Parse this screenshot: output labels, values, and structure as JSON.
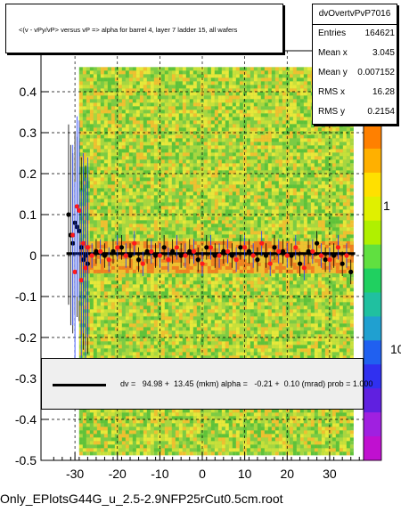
{
  "chart_data": {
    "type": "scatter",
    "title": "<(v - vPy/vP> versus   vP => alpha for barrel 4, layer 7 ladder 15, all wafers",
    "footer": "Only_EPlotsG44G_u_2.5-2.9NFP25rCut0.5cm.root",
    "xlim": [
      -38,
      38
    ],
    "ylim": [
      -0.5,
      0.5
    ],
    "x_ticks": [
      -30,
      -20,
      -10,
      0,
      10,
      20,
      30
    ],
    "x_tick_labels": [
      "-30",
      "-20",
      "-10",
      "0",
      "10",
      "20",
      "30"
    ],
    "y_ticks": [
      -0.5,
      -0.4,
      -0.3,
      -0.2,
      -0.1,
      0,
      0.1,
      0.2,
      0.3,
      0.4
    ],
    "y_tick_labels": [
      "-0.5",
      "-0.4",
      "-0.3",
      "-0.2",
      "-0.1",
      "0",
      "0.1",
      "0.2",
      "0.3",
      "0.4"
    ],
    "colorbar_labels": [
      "1",
      "10"
    ],
    "grid": true,
    "stats": {
      "title": "dvOvertvPvP7016",
      "rows": [
        {
          "k": "Entries",
          "v": "164621"
        },
        {
          "k": "Mean x",
          "v": "3.045"
        },
        {
          "k": "Mean y",
          "v": "0.007152"
        },
        {
          "k": "RMS x",
          "v": "16.28"
        },
        {
          "k": "RMS y",
          "v": "0.2154"
        }
      ]
    },
    "fit_text": "dv =   94.98 +  13.45 (mkm) alpha =   -0.21 +  0.10 (mrad) prob = 1.000",
    "fit_line": {
      "x": [
        -32,
        36
      ],
      "y": [
        0.005,
        0.005
      ]
    },
    "series": [
      {
        "marker": "black",
        "x": [
          -31.5,
          -31,
          -30.5,
          -30,
          -29.5,
          -29,
          -28.5,
          -28,
          -27.5,
          -27,
          -25,
          -23,
          -21,
          -19,
          -17,
          -15,
          -13,
          -11,
          -9,
          -7,
          -5,
          -3,
          -1,
          1,
          3,
          5,
          7,
          9,
          11,
          13,
          15,
          17,
          19,
          21,
          23,
          25,
          27,
          29,
          31,
          33,
          35
        ],
        "y": [
          0.1,
          0.05,
          0.03,
          0.08,
          0.07,
          0.06,
          0.02,
          -0.01,
          0.0,
          -0.02,
          0.01,
          0.0,
          0.01,
          0.02,
          0.0,
          -0.01,
          0.01,
          0.0,
          0.02,
          0.01,
          0.0,
          0.01,
          -0.01,
          0.02,
          0.0,
          0.01,
          0.0,
          0.02,
          0.01,
          -0.01,
          0.0,
          0.02,
          0.01,
          0.0,
          -0.02,
          0.01,
          0.03,
          -0.01,
          0.0,
          -0.02,
          -0.04
        ]
      },
      {
        "marker": "red",
        "x": [
          -30.5,
          -30,
          -29.5,
          -29,
          -28.5,
          -28,
          -27.5,
          -27,
          -26,
          -24,
          -22,
          -20,
          -18,
          -16,
          -14,
          -12,
          -10,
          -8,
          -6,
          -4,
          -2,
          0,
          2,
          4,
          6,
          8,
          10,
          12,
          14,
          16,
          18,
          20,
          22,
          24,
          26,
          28,
          30,
          32,
          34
        ],
        "y": [
          0.05,
          -0.04,
          0.12,
          0.11,
          -0.06,
          0.03,
          -0.03,
          0.02,
          0.0,
          0.01,
          -0.01,
          0.02,
          0.0,
          0.03,
          -0.02,
          0.01,
          0.0,
          -0.01,
          0.02,
          0.0,
          0.01,
          -0.02,
          0.02,
          0.0,
          0.01,
          -0.01,
          0.02,
          0.0,
          0.03,
          -0.02,
          0.01,
          0.0,
          0.02,
          -0.03,
          0.01,
          0.0,
          -0.01,
          0.02,
          0.0
        ]
      }
    ]
  }
}
